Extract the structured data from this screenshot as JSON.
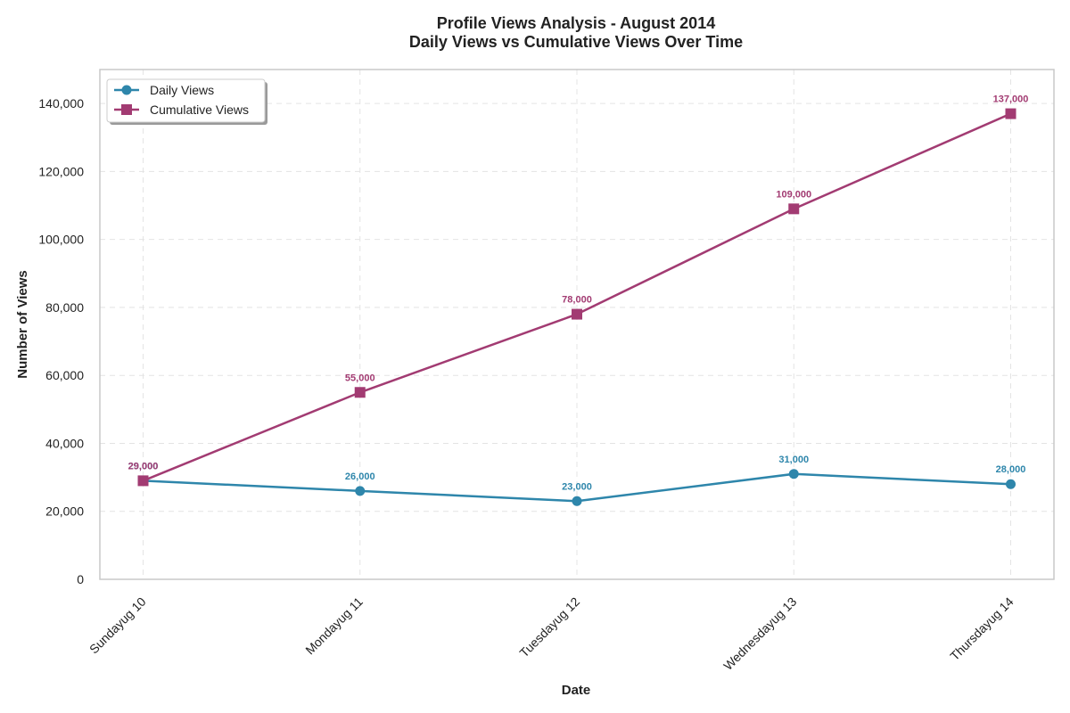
{
  "chart_data": {
    "type": "line",
    "title": "Profile Views Analysis - August 2014",
    "subtitle": "Daily Views vs Cumulative Views Over Time",
    "xlabel": "Date",
    "ylabel": "Number of Views",
    "categories": [
      "Sundayug 10",
      "Mondayug 11",
      "Tuesdayug 12",
      "Wednesdayug 13",
      "Thursdayug 14"
    ],
    "ylim": [
      0,
      150000
    ],
    "yticks": [
      0,
      20000,
      40000,
      60000,
      80000,
      100000,
      120000,
      140000
    ],
    "ytick_labels": [
      "0",
      "20,000",
      "40,000",
      "60,000",
      "80,000",
      "100,000",
      "120,000",
      "140,000"
    ],
    "grid": true,
    "legend_position": "top-left",
    "series": [
      {
        "name": "Daily Views",
        "values": [
          29000,
          26000,
          23000,
          31000,
          28000
        ],
        "data_labels": [
          "29,000",
          "26,000",
          "23,000",
          "31,000",
          "28,000"
        ],
        "color": "#2e86ab",
        "marker": "circle"
      },
      {
        "name": "Cumulative Views",
        "values": [
          29000,
          55000,
          78000,
          109000,
          137000
        ],
        "data_labels": [
          "29,000",
          "55,000",
          "78,000",
          "109,000",
          "137,000"
        ],
        "color": "#a23b72",
        "marker": "square"
      }
    ]
  }
}
